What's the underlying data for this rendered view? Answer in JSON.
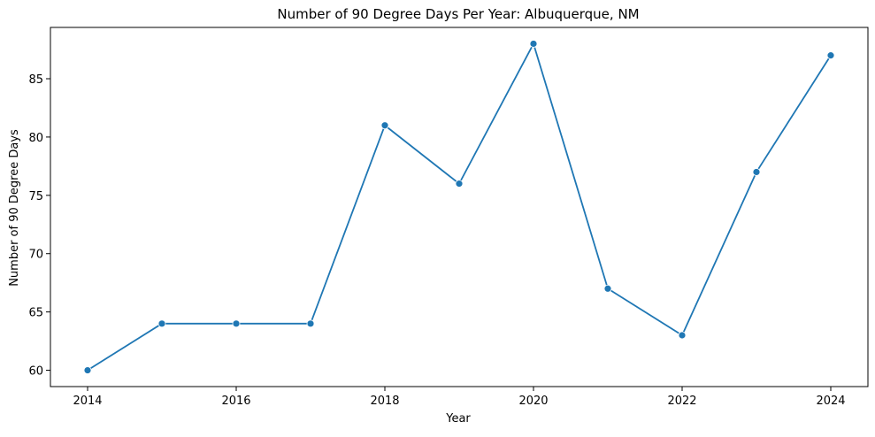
{
  "chart_data": {
    "type": "line",
    "title": "Number of 90 Degree Days Per Year: Albuquerque, NM",
    "xlabel": "Year",
    "ylabel": "Number of 90 Degree Days",
    "x": [
      2014,
      2015,
      2016,
      2017,
      2018,
      2019,
      2020,
      2021,
      2022,
      2023,
      2024
    ],
    "series": [
      {
        "values": [
          60,
          64,
          64,
          64,
          81,
          76,
          88,
          67,
          63,
          77,
          87
        ],
        "color": "#1f77b4",
        "marker": "circle"
      }
    ],
    "xticks": [
      2014,
      2016,
      2018,
      2020,
      2022,
      2024
    ],
    "yticks": [
      60,
      65,
      70,
      75,
      80,
      85
    ],
    "xlim": [
      2013.5,
      2024.5
    ],
    "ylim": [
      58.6,
      89.4
    ],
    "grid": false,
    "legend": "none"
  }
}
